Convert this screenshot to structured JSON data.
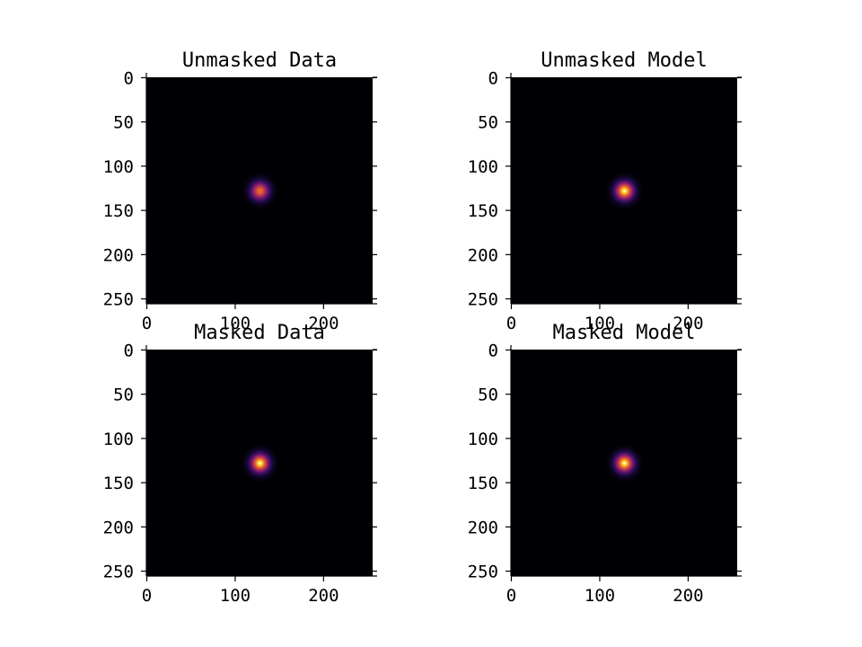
{
  "chart_data": [
    {
      "type": "heatmap",
      "title": "Unmasked Data",
      "xlim": [
        0,
        255
      ],
      "ylim": [
        255,
        0
      ],
      "xticks": [
        0,
        100,
        200
      ],
      "yticks": [
        0,
        50,
        100,
        150,
        200,
        250
      ],
      "image_size": [
        256,
        256
      ],
      "source_center": [
        128,
        128
      ],
      "source_sigma": 7,
      "peak_intensity": 0.78,
      "colormap": "inferno",
      "grid": false
    },
    {
      "type": "heatmap",
      "title": "Unmasked Model",
      "xlim": [
        0,
        255
      ],
      "ylim": [
        255,
        0
      ],
      "xticks": [
        0,
        100,
        200
      ],
      "yticks": [
        0,
        50,
        100,
        150,
        200,
        250
      ],
      "image_size": [
        256,
        256
      ],
      "source_center": [
        128,
        128
      ],
      "source_sigma": 7,
      "peak_intensity": 1.0,
      "colormap": "inferno",
      "grid": false
    },
    {
      "type": "heatmap",
      "title": "Masked Data",
      "xlim": [
        0,
        255
      ],
      "ylim": [
        255,
        0
      ],
      "xticks": [
        0,
        100,
        200
      ],
      "yticks": [
        0,
        50,
        100,
        150,
        200,
        250
      ],
      "image_size": [
        256,
        256
      ],
      "source_center": [
        128,
        128
      ],
      "source_sigma": 7,
      "peak_intensity": 1.0,
      "colormap": "inferno",
      "grid": false
    },
    {
      "type": "heatmap",
      "title": "Masked Model",
      "xlim": [
        0,
        255
      ],
      "ylim": [
        255,
        0
      ],
      "xticks": [
        0,
        100,
        200
      ],
      "yticks": [
        0,
        50,
        100,
        150,
        200,
        250
      ],
      "image_size": [
        256,
        256
      ],
      "source_center": [
        128,
        128
      ],
      "source_sigma": 7,
      "peak_intensity": 1.0,
      "colormap": "inferno",
      "grid": false
    }
  ]
}
